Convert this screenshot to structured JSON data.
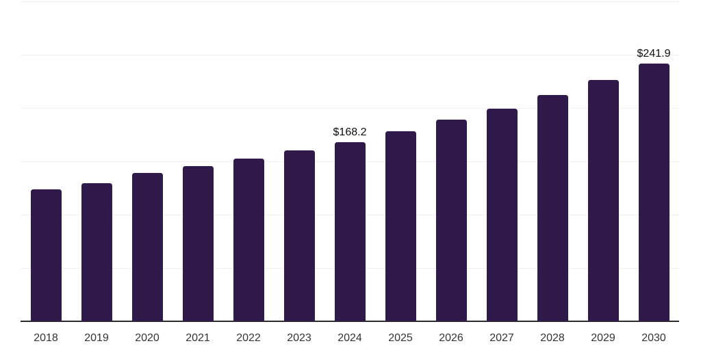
{
  "chart_data": {
    "type": "bar",
    "title": "",
    "xlabel": "",
    "ylabel": "",
    "categories": [
      "2018",
      "2019",
      "2020",
      "2021",
      "2022",
      "2023",
      "2024",
      "2025",
      "2026",
      "2027",
      "2028",
      "2029",
      "2030"
    ],
    "values": [
      123.8,
      129.5,
      138.8,
      145.8,
      152.5,
      160.1,
      168.2,
      177.9,
      188.8,
      199.4,
      211.9,
      226.0,
      241.9
    ],
    "value_labels": {
      "2024": "$168.2",
      "2030": "$241.9"
    },
    "ylim": [
      0,
      300
    ],
    "ytick_step": 50,
    "ytick_labels_visible": false,
    "grid": "horizontal",
    "legend": "none",
    "colors": {
      "bar": "#301a4a",
      "gridline": "#f0f0f0",
      "axis_line": "#2b2b2b",
      "x_tick_label": "#333333",
      "value_label": "#0d0d0d",
      "background": "#ffffff"
    }
  }
}
